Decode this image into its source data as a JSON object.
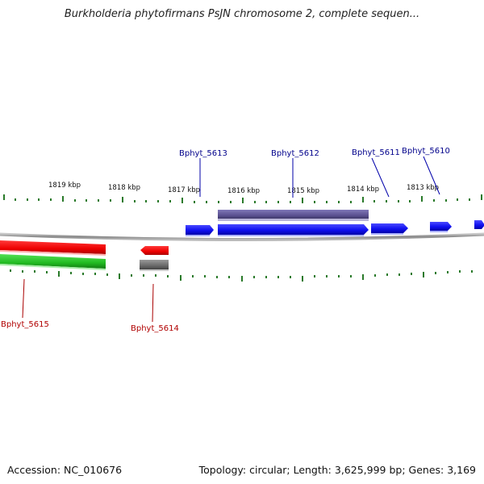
{
  "title": "Burkholderia phytofirmans PsJN chromosome 2, complete sequen...",
  "footer": {
    "accession": "Accession: NC_010676",
    "summary": "Topology: circular; Length: 3,625,999 bp; Genes: 3,169"
  },
  "scale_labels": [
    "1819 kbp",
    "1818 kbp",
    "1817 kbp",
    "1816 kbp",
    "1815 kbp",
    "1814 kbp",
    "1813 kbp"
  ],
  "forward_genes": [
    "Bphyt_5613",
    "Bphyt_5612",
    "Bphyt_5611",
    "Bphyt_5610"
  ],
  "reverse_genes": [
    "Bphyt_5615",
    "Bphyt_5614"
  ],
  "colors": {
    "forward_label": "#00008b",
    "reverse_label": "#b00000",
    "forward_gene": "#1a1aff",
    "reverse_gene": "#ff0000",
    "rna_forward": "#5a5090",
    "rna_reverse_green": "#22bb22",
    "rna_reverse_gray": "#707070",
    "tick": "#2a7a2a",
    "backbone": "#888888"
  }
}
